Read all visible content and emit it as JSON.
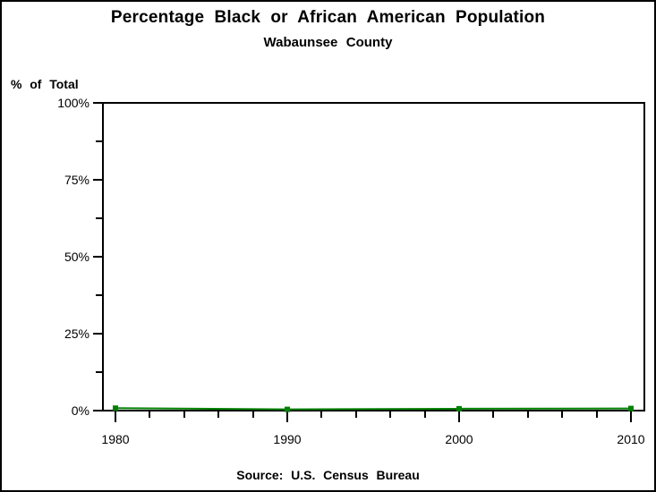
{
  "chart_data": {
    "type": "line",
    "title": "Percentage Black or African American Population",
    "subtitle": "Wabaunsee County",
    "ylabel": "% of Total",
    "xlabel": "",
    "source_note": "Source: U.S. Census Bureau",
    "x": [
      1980,
      1990,
      2000,
      2010
    ],
    "x_tick_labels": [
      "1980",
      "1990",
      "2000",
      "2010"
    ],
    "series": [
      {
        "name": "Black or African American share of population",
        "values": [
          0.8,
          0.4,
          0.6,
          0.7
        ],
        "color": "#008000",
        "marker": "square"
      }
    ],
    "xlim": [
      1980,
      2010
    ],
    "ylim": [
      0,
      100
    ],
    "y_major_ticks": [
      {
        "value": 0,
        "label": "0%"
      },
      {
        "value": 25,
        "label": "25%"
      },
      {
        "value": 50,
        "label": "50%"
      },
      {
        "value": 75,
        "label": "75%"
      },
      {
        "value": 100,
        "label": "100%"
      }
    ],
    "y_minor_tick_values": [
      12.5,
      37.5,
      62.5,
      87.5
    ],
    "x_minor_tick_step_years": 2,
    "grid": false,
    "legend": "none",
    "frame": true,
    "axis_color": "#000000",
    "background_color": "#ffffff"
  }
}
